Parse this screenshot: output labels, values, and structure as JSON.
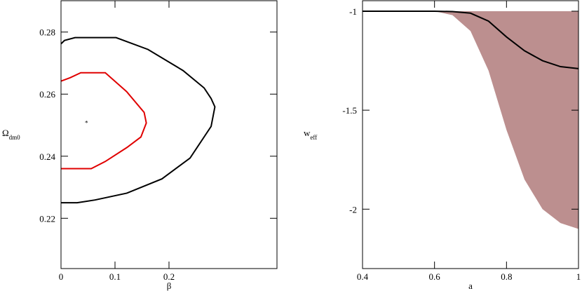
{
  "chart_data": [
    {
      "type": "contour",
      "x_label": "β",
      "y_label": {
        "text": "Ω",
        "sub": "dm0"
      },
      "xlim": [
        0,
        0.4
      ],
      "ylim": [
        0.2038,
        0.2901
      ],
      "xticks": [
        0,
        0.1,
        0.2
      ],
      "yticks": [
        0.22,
        0.24,
        0.26,
        0.28
      ],
      "series": [
        {
          "color": "#000000",
          "x": [
            0,
            0.0065,
            0.026,
            0.102,
            0.161,
            0.226,
            0.265,
            0.278,
            0.285,
            0.278,
            0.239,
            0.187,
            0.122,
            0.063,
            0.03,
            0
          ],
          "values": [
            0.2762,
            0.2773,
            0.2782,
            0.2782,
            0.2744,
            0.2676,
            0.262,
            0.2586,
            0.2559,
            0.2496,
            0.2394,
            0.2327,
            0.2281,
            0.2259,
            0.225,
            0.225
          ]
        },
        {
          "color": "#e00000",
          "x": [
            0,
            0.017,
            0.0366,
            0.082,
            0.1216,
            0.154,
            0.158,
            0.148,
            0.122,
            0.082,
            0.056,
            0
          ],
          "values": [
            0.2642,
            0.2653,
            0.2669,
            0.2669,
            0.2608,
            0.2541,
            0.2507,
            0.2462,
            0.2428,
            0.2383,
            0.236,
            0.236
          ]
        }
      ],
      "marker": {
        "x": 0.047,
        "y": 0.2509,
        "color": "#000000"
      }
    },
    {
      "type": "line",
      "x_label": "a",
      "y_label": {
        "text": "w",
        "sub": "eff"
      },
      "xlim": [
        0.4,
        1.0
      ],
      "ylim": [
        -2.3,
        -0.947
      ],
      "xticks": [
        0.4,
        0.6,
        0.8,
        1
      ],
      "yticks": [
        -2,
        -1.5,
        -1
      ],
      "x": [
        0.4,
        0.45,
        0.5,
        0.55,
        0.6,
        0.65,
        0.7,
        0.75,
        0.8,
        0.85,
        0.9,
        0.95,
        1.0
      ],
      "band": {
        "color": "#bc8f8f",
        "lower": [
          -1,
          -1,
          -1,
          -1,
          -1,
          -1.02,
          -1.1,
          -1.3,
          -1.6,
          -1.85,
          -2.0,
          -2.07,
          -2.1
        ],
        "upper": [
          -1,
          -1,
          -1,
          -1,
          -1,
          -1,
          -1,
          -1,
          -1,
          -1,
          -1,
          -1,
          -1
        ]
      },
      "series": [
        {
          "color": "#000000",
          "values": [
            -1,
            -1,
            -1,
            -1,
            -1,
            -1.002,
            -1.01,
            -1.05,
            -1.13,
            -1.2,
            -1.25,
            -1.28,
            -1.29
          ]
        }
      ]
    }
  ]
}
